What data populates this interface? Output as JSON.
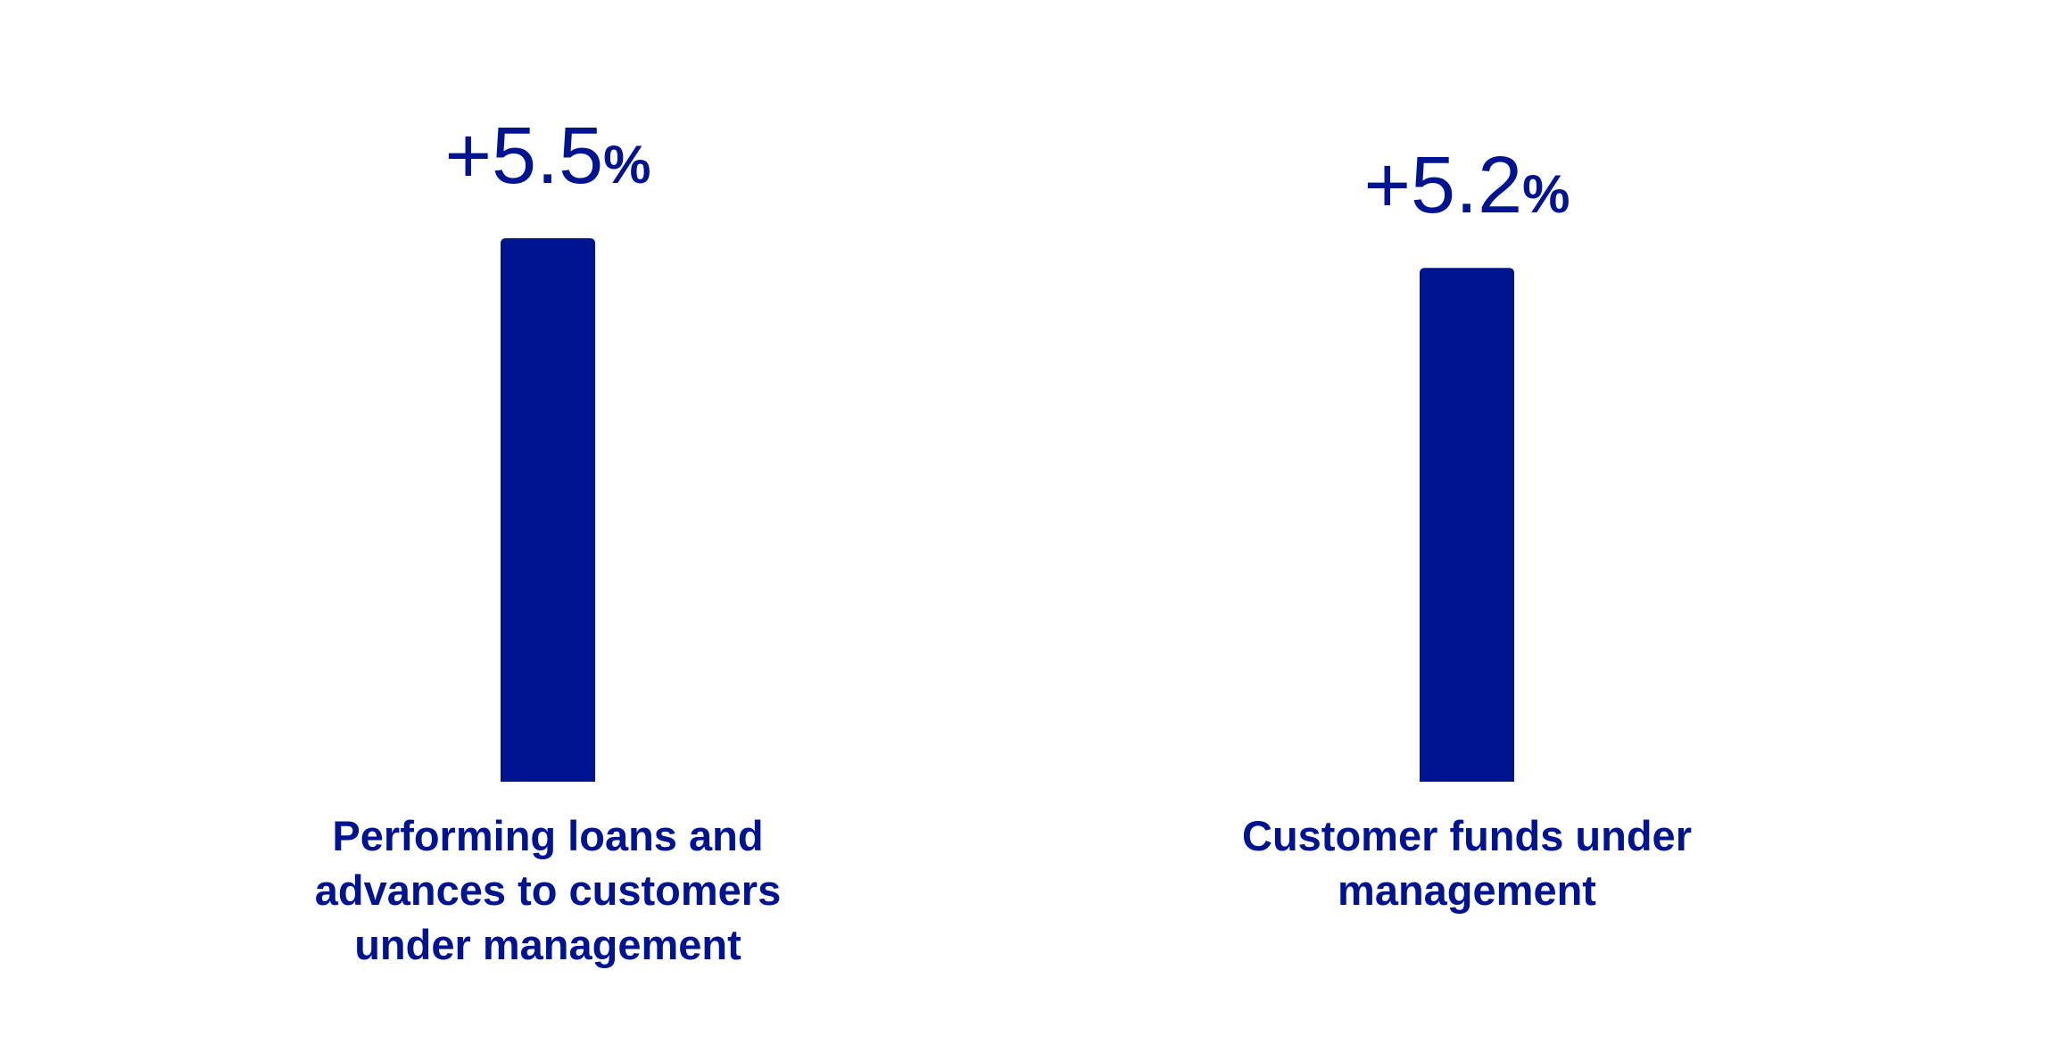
{
  "chart_data": {
    "type": "bar",
    "title": "",
    "xlabel": "",
    "ylabel": "",
    "ylim": [
      0,
      5.5
    ],
    "grid": false,
    "categories": [
      "Performing loans and advances to customers under management",
      "Customer funds under management"
    ],
    "category_lines": [
      [
        "Performing loans and",
        "advances to customers",
        "under management"
      ],
      [
        "Customer funds under",
        "management"
      ]
    ],
    "values": [
      5.5,
      5.2
    ],
    "value_labels": [
      {
        "number": "+5.5",
        "unit": "%"
      },
      {
        "number": "+5.2",
        "unit": "%"
      }
    ],
    "bar_color": "#001391",
    "text_color": "#001391"
  }
}
